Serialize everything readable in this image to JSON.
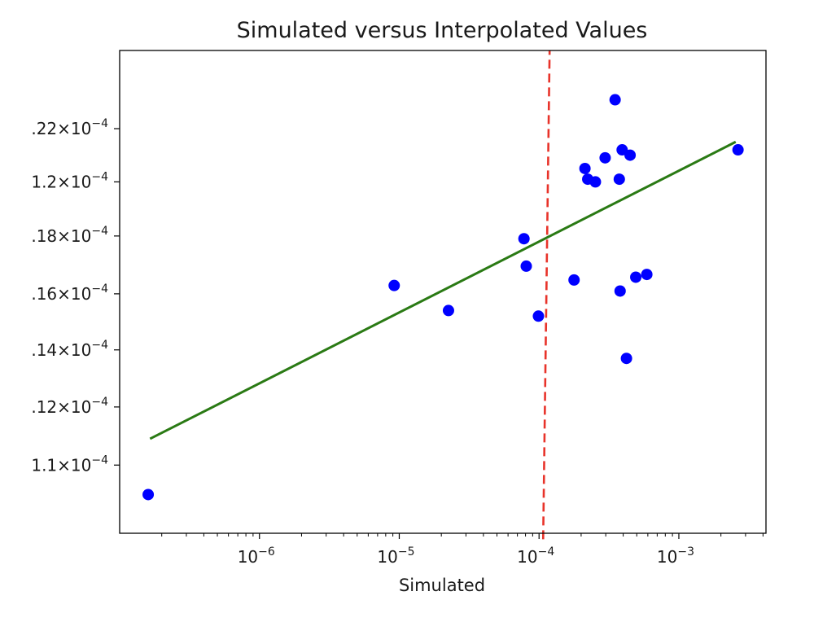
{
  "chart_data": {
    "type": "scatter",
    "title": "Simulated versus Interpolated Values",
    "xlabel": "Simulated",
    "ylabel": "",
    "xscale": "log",
    "yscale": "log",
    "xlim": [
      1e-07,
      0.0042
    ],
    "ylim": [
      0.0001062,
      0.0001236
    ],
    "grid": false,
    "x_ticks": [
      {
        "value": 1e-06,
        "base": "10",
        "exp": "−6"
      },
      {
        "value": 1e-05,
        "base": "10",
        "exp": "−5"
      },
      {
        "value": 0.0001,
        "base": "10",
        "exp": "−4"
      },
      {
        "value": 0.001,
        "base": "10",
        "exp": "−3"
      }
    ],
    "y_ticks": [
      {
        "value": 0.0001085,
        "label": "1.1×10",
        "exp": "−4"
      },
      {
        "value": 0.0001105,
        "label": ".12×10",
        "exp": "−4"
      },
      {
        "value": 0.0001125,
        "label": ".14×10",
        "exp": "−4"
      },
      {
        "value": 0.0001145,
        "label": ".16×10",
        "exp": "−4"
      },
      {
        "value": 0.0001166,
        "label": ".18×10",
        "exp": "−4"
      },
      {
        "value": 0.0001186,
        "label": "1.2×10",
        "exp": "−4"
      },
      {
        "value": 0.0001206,
        "label": ".22×10",
        "exp": "−4"
      }
    ],
    "series": [
      {
        "name": "points",
        "color": "#0000ff",
        "points": [
          [
            1.6e-07,
            0.0001075
          ],
          [
            9.2e-06,
            0.0001148
          ],
          [
            2.25e-05,
            0.0001139
          ],
          [
            7.8e-05,
            0.0001165
          ],
          [
            8.1e-05,
            0.0001155
          ],
          [
            9.9e-05,
            0.0001137
          ],
          [
            0.000178,
            0.000115
          ],
          [
            0.000213,
            0.0001191
          ],
          [
            0.000223,
            0.0001187
          ],
          [
            0.000253,
            0.0001186
          ],
          [
            0.000297,
            0.0001195
          ],
          [
            0.00035,
            0.0001217
          ],
          [
            0.000375,
            0.0001187
          ],
          [
            0.00038,
            0.0001146
          ],
          [
            0.000393,
            0.0001198
          ],
          [
            0.000422,
            0.0001122
          ],
          [
            0.000448,
            0.0001196
          ],
          [
            0.000492,
            0.0001151
          ],
          [
            0.00059,
            0.0001152
          ],
          [
            0.00265,
            0.0001198
          ]
        ]
      },
      {
        "name": "fit",
        "type": "line",
        "color": "#2a7a14",
        "points": [
          [
            1.65e-07,
            0.0001094
          ],
          [
            0.00255,
            0.0001201
          ]
        ]
      },
      {
        "name": "threshold",
        "type": "line",
        "style": "dashed",
        "color": "#e8332a",
        "points": [
          [
            0.000107,
            0.000106
          ],
          [
            0.000119,
            0.0001236
          ]
        ]
      }
    ]
  }
}
